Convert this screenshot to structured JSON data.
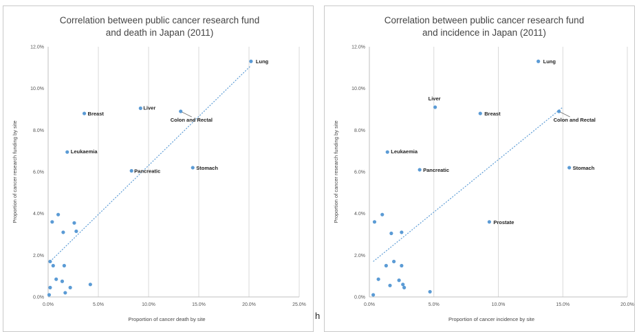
{
  "chart_data": [
    {
      "type": "scatter",
      "title": [
        "Correlation between public cancer research fund",
        "and death in Japan (2011)"
      ],
      "xlabel": "Proportion of cancer death by site",
      "ylabel": "Proportion of cancer research funding by site",
      "xlim": [
        0,
        25
      ],
      "ylim": [
        0,
        12
      ],
      "xticks": [
        "0.0%",
        "5.0%",
        "10.0%",
        "15.0%",
        "20.0%",
        "25.0%"
      ],
      "yticks": [
        "0.0%",
        "2.0%",
        "4.0%",
        "6.0%",
        "8.0%",
        "10.0%",
        "12.0%"
      ],
      "grid": "vertical",
      "trendline": [
        [
          0.2,
          1.7
        ],
        [
          20.2,
          11.1
        ]
      ],
      "points": [
        {
          "x": 20.2,
          "y": 11.3,
          "label": "Lung"
        },
        {
          "x": 9.2,
          "y": 9.05,
          "label": "Liver"
        },
        {
          "x": 3.6,
          "y": 8.8,
          "label": "Breast"
        },
        {
          "x": 13.2,
          "y": 8.9,
          "label": "Colon and Rectal"
        },
        {
          "x": 1.9,
          "y": 6.95,
          "label": "Leukaemia"
        },
        {
          "x": 8.3,
          "y": 6.05,
          "label": "Pancreatic"
        },
        {
          "x": 14.4,
          "y": 6.2,
          "label": "Stomach"
        },
        {
          "x": 0.4,
          "y": 3.6,
          "label": ""
        },
        {
          "x": 1.0,
          "y": 3.95,
          "label": ""
        },
        {
          "x": 1.5,
          "y": 3.1,
          "label": ""
        },
        {
          "x": 2.6,
          "y": 3.55,
          "label": ""
        },
        {
          "x": 2.8,
          "y": 3.15,
          "label": ""
        },
        {
          "x": 0.2,
          "y": 1.7,
          "label": ""
        },
        {
          "x": 0.5,
          "y": 1.5,
          "label": ""
        },
        {
          "x": 1.6,
          "y": 1.5,
          "label": ""
        },
        {
          "x": 0.8,
          "y": 0.85,
          "label": ""
        },
        {
          "x": 1.4,
          "y": 0.75,
          "label": ""
        },
        {
          "x": 2.2,
          "y": 0.45,
          "label": ""
        },
        {
          "x": 0.2,
          "y": 0.45,
          "label": ""
        },
        {
          "x": 1.7,
          "y": 0.2,
          "label": ""
        },
        {
          "x": 0.1,
          "y": 0.1,
          "label": ""
        },
        {
          "x": 4.2,
          "y": 0.6,
          "label": ""
        }
      ]
    },
    {
      "type": "scatter",
      "title": [
        "Correlation between public cancer research fund",
        "and incidence in Japan (2011)"
      ],
      "xlabel": "Proportion of cancer incidence by site",
      "ylabel": "Proportion of cancer research funding by site",
      "xlim": [
        0,
        20
      ],
      "ylim": [
        0,
        12
      ],
      "xticks": [
        "0.0%",
        "5.0%",
        "10.0%",
        "15.0%",
        "20.0%"
      ],
      "yticks": [
        "0.0%",
        "2.0%",
        "4.0%",
        "6.0%",
        "8.0%",
        "10.0%",
        "12.0%"
      ],
      "grid": "vertical",
      "trendline": [
        [
          0.3,
          1.7
        ],
        [
          15.0,
          9.1
        ]
      ],
      "points": [
        {
          "x": 13.1,
          "y": 11.3,
          "label": "Lung"
        },
        {
          "x": 5.1,
          "y": 9.1,
          "label": "Liver"
        },
        {
          "x": 8.6,
          "y": 8.8,
          "label": "Breast"
        },
        {
          "x": 14.7,
          "y": 8.9,
          "label": "Colon and Rectal"
        },
        {
          "x": 1.4,
          "y": 6.95,
          "label": "Leukaemia"
        },
        {
          "x": 3.9,
          "y": 6.1,
          "label": "Pancreatic"
        },
        {
          "x": 15.5,
          "y": 6.2,
          "label": "Stomach"
        },
        {
          "x": 9.3,
          "y": 3.6,
          "label": "Prostate"
        },
        {
          "x": 0.4,
          "y": 3.6,
          "label": ""
        },
        {
          "x": 1.0,
          "y": 3.95,
          "label": ""
        },
        {
          "x": 1.7,
          "y": 3.05,
          "label": ""
        },
        {
          "x": 2.5,
          "y": 3.1,
          "label": ""
        },
        {
          "x": 1.3,
          "y": 1.5,
          "label": ""
        },
        {
          "x": 1.9,
          "y": 1.7,
          "label": ""
        },
        {
          "x": 2.5,
          "y": 1.5,
          "label": ""
        },
        {
          "x": 0.7,
          "y": 0.85,
          "label": ""
        },
        {
          "x": 1.6,
          "y": 0.55,
          "label": ""
        },
        {
          "x": 2.3,
          "y": 0.8,
          "label": ""
        },
        {
          "x": 2.6,
          "y": 0.6,
          "label": ""
        },
        {
          "x": 2.7,
          "y": 0.45,
          "label": ""
        },
        {
          "x": 4.7,
          "y": 0.25,
          "label": ""
        },
        {
          "x": 0.3,
          "y": 0.1,
          "label": ""
        }
      ]
    }
  ],
  "colors": {
    "point": "#5b9bd5",
    "trendline": "#5b9bd5",
    "grid": "#d9d9d9",
    "axis": "#bfbfbf"
  },
  "stray_text": "h"
}
